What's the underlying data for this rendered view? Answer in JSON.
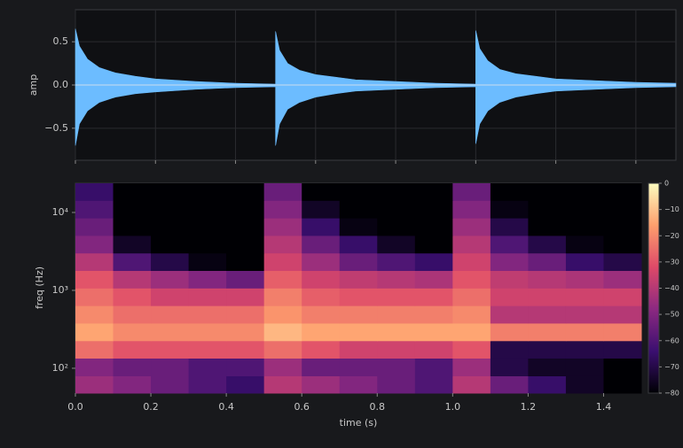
{
  "chart_data": [
    {
      "type": "waveform",
      "ylabel": "amp",
      "grid": true,
      "xlim": [
        0,
        1.5
      ],
      "ylim": [
        -0.87,
        0.87
      ],
      "yticks": [
        {
          "value": -0.5,
          "label": "−0.5"
        },
        {
          "value": 0,
          "label": "0.0"
        },
        0.5
      ],
      "x": [
        0,
        0.01,
        0.03,
        0.06,
        0.1,
        0.15,
        0.2,
        0.3,
        0.4,
        0.5,
        0.5,
        0.51,
        0.53,
        0.56,
        0.6,
        0.65,
        0.7,
        0.8,
        0.9,
        1.0,
        1.0,
        1.01,
        1.03,
        1.06,
        1.1,
        1.15,
        1.2,
        1.3,
        1.4,
        1.5
      ],
      "series": [
        {
          "color": "#6cbcff",
          "values": [
            0.65,
            0.45,
            0.3,
            0.2,
            0.14,
            0.1,
            0.07,
            0.04,
            0.02,
            0.01,
            0.62,
            0.4,
            0.25,
            0.17,
            0.12,
            0.09,
            0.06,
            0.04,
            0.02,
            0.01,
            0.63,
            0.42,
            0.28,
            0.18,
            0.13,
            0.1,
            0.07,
            0.05,
            0.03,
            0.02
          ]
        },
        {
          "color": "#6cbcff",
          "values": [
            -0.7,
            -0.45,
            -0.3,
            -0.2,
            -0.14,
            -0.1,
            -0.08,
            -0.05,
            -0.03,
            -0.02,
            -0.7,
            -0.45,
            -0.28,
            -0.2,
            -0.14,
            -0.1,
            -0.07,
            -0.05,
            -0.03,
            -0.02,
            -0.68,
            -0.45,
            -0.3,
            -0.2,
            -0.14,
            -0.1,
            -0.07,
            -0.05,
            -0.03,
            -0.02
          ]
        }
      ]
    },
    {
      "type": "heatmap",
      "xlabel": "time (s)",
      "ylabel": "freq (Hz)",
      "log_y": true,
      "xlim": [
        0,
        1.5
      ],
      "ylim": [
        48,
        23700
      ],
      "xticks": [
        {
          "value": 0,
          "label": "0.0"
        },
        0.2,
        0.4,
        0.6,
        0.8,
        {
          "value": 1,
          "label": "1.0"
        },
        1.2,
        1.4
      ],
      "yticks": [
        {
          "value": 100,
          "label": "10²"
        },
        {
          "value": 1000,
          "label": "10³"
        },
        {
          "value": 10000,
          "label": "10⁴"
        }
      ],
      "xbins": [
        0,
        0.1,
        0.2,
        0.3,
        0.4,
        0.5,
        0.6,
        0.7,
        0.8,
        0.9,
        1.0,
        1.1,
        1.2,
        1.3,
        1.4,
        1.5
      ],
      "ybins": [
        48,
        80,
        135,
        226,
        380,
        638,
        1072,
        1800,
        3020,
        5070,
        8510,
        14300,
        23700
      ],
      "z": [
        [
          -45,
          -50,
          -55,
          -60,
          -65,
          -40,
          -45,
          -50,
          -55,
          -60,
          -40,
          -55,
          -65,
          -75,
          -80
        ],
        [
          -50,
          -55,
          -55,
          -60,
          -60,
          -45,
          -55,
          -55,
          -55,
          -60,
          -45,
          -70,
          -75,
          -75,
          -80
        ],
        [
          -25,
          -30,
          -30,
          -30,
          -30,
          -25,
          -30,
          -35,
          -35,
          -35,
          -30,
          -70,
          -70,
          -70,
          -70
        ],
        [
          -15,
          -20,
          -20,
          -20,
          -20,
          -12,
          -15,
          -15,
          -15,
          -15,
          -15,
          -22,
          -22,
          -22,
          -22
        ],
        [
          -20,
          -25,
          -25,
          -25,
          -25,
          -18,
          -22,
          -22,
          -22,
          -22,
          -20,
          -40,
          -40,
          -40,
          -40
        ],
        [
          -25,
          -30,
          -35,
          -35,
          -35,
          -22,
          -28,
          -30,
          -30,
          -30,
          -25,
          -35,
          -35,
          -35,
          -35
        ],
        [
          -30,
          -40,
          -45,
          -50,
          -55,
          -28,
          -35,
          -38,
          -40,
          -42,
          -30,
          -38,
          -40,
          -42,
          -45
        ],
        [
          -40,
          -60,
          -70,
          -78,
          -80,
          -35,
          -45,
          -55,
          -60,
          -65,
          -35,
          -50,
          -55,
          -65,
          -70
        ],
        [
          -50,
          -75,
          -80,
          -80,
          -80,
          -40,
          -55,
          -65,
          -75,
          -80,
          -40,
          -60,
          -70,
          -78,
          -80
        ],
        [
          -55,
          -80,
          -80,
          -80,
          -80,
          -45,
          -65,
          -78,
          -80,
          -80,
          -45,
          -70,
          -80,
          -80,
          -80
        ],
        [
          -60,
          -80,
          -80,
          -80,
          -80,
          -50,
          -75,
          -80,
          -80,
          -80,
          -50,
          -78,
          -80,
          -80,
          -80
        ],
        [
          -65,
          -80,
          -80,
          -80,
          -80,
          -55,
          -80,
          -80,
          -80,
          -80,
          -55,
          -80,
          -80,
          -80,
          -80
        ]
      ],
      "zlim": [
        -80,
        0
      ],
      "colormap": [
        "#000004",
        "#3b0f70",
        "#8c2981",
        "#de4968",
        "#fe9f6d",
        "#fcfdbf"
      ],
      "colorbar_ticks": [
        0,
        {
          "value": -10,
          "label": "−10"
        },
        {
          "value": -20,
          "label": "−20"
        },
        {
          "value": -30,
          "label": "−30"
        },
        {
          "value": -40,
          "label": "−40"
        },
        {
          "value": -50,
          "label": "−50"
        },
        {
          "value": -60,
          "label": "−60"
        },
        {
          "value": -70,
          "label": "−70"
        },
        {
          "value": -80,
          "label": "−80"
        }
      ]
    }
  ]
}
